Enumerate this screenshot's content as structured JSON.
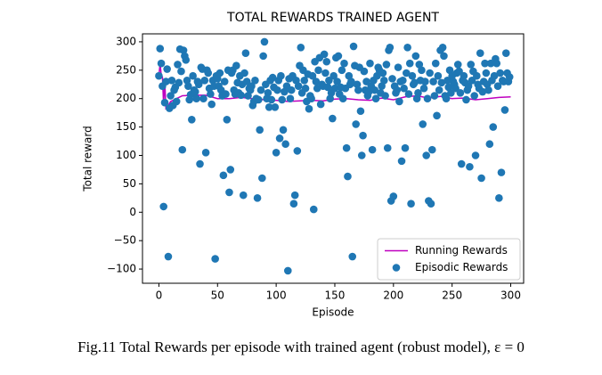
{
  "chart_data": {
    "type": "scatter",
    "title": "TOTAL REWARDS TRAINED AGENT",
    "xlabel": "Episode",
    "ylabel": "Total reward",
    "caption": "Fig.11 Total Rewards per episode with trained agent (robust model), ε = 0",
    "xlim": [
      -14,
      311
    ],
    "ylim": [
      -125,
      314
    ],
    "xticks": [
      0,
      50,
      100,
      150,
      200,
      250,
      300
    ],
    "yticks": [
      {
        "value": -100,
        "label": "−100"
      },
      {
        "value": -50,
        "label": "−50"
      },
      0,
      50,
      100,
      150,
      200,
      250,
      300
    ],
    "legend": "lower right",
    "grid": false,
    "series": [
      {
        "name": "Running Rewards",
        "color": "#bf00bf",
        "kind": "line",
        "x": [
          0,
          1,
          2,
          3,
          4,
          5,
          6,
          8,
          10,
          15,
          20,
          30,
          40,
          50,
          60,
          70,
          80,
          90,
          100,
          110,
          120,
          130,
          140,
          150,
          160,
          170,
          180,
          190,
          200,
          210,
          220,
          230,
          240,
          250,
          260,
          270,
          280,
          290,
          300
        ],
        "values": [
          240,
          262,
          240,
          238,
          190,
          232,
          183,
          188,
          195,
          200,
          205,
          206,
          206,
          200,
          200,
          202,
          200,
          198,
          197,
          195,
          196,
          197,
          196,
          199,
          200,
          198,
          197,
          201,
          198,
          203,
          205,
          201,
          204,
          200,
          201,
          198,
          200,
          202,
          203
        ]
      },
      {
        "name": "Episodic Rewards",
        "color": "#1f77b4",
        "kind": "scatter",
        "x": [
          0,
          1,
          2,
          3,
          4,
          5,
          6,
          7,
          8,
          9,
          10,
          11,
          12,
          13,
          14,
          15,
          16,
          17,
          18,
          19,
          20,
          21,
          22,
          23,
          24,
          25,
          26,
          27,
          28,
          29,
          30,
          31,
          32,
          33,
          34,
          35,
          36,
          37,
          38,
          39,
          40,
          41,
          42,
          43,
          44,
          45,
          46,
          47,
          48,
          49,
          50,
          51,
          52,
          53,
          54,
          55,
          56,
          57,
          58,
          59,
          60,
          61,
          62,
          63,
          64,
          65,
          66,
          67,
          68,
          69,
          70,
          71,
          72,
          73,
          74,
          75,
          76,
          77,
          78,
          79,
          80,
          81,
          82,
          83,
          84,
          85,
          86,
          87,
          88,
          89,
          90,
          91,
          92,
          93,
          94,
          95,
          96,
          97,
          98,
          99,
          100,
          101,
          102,
          103,
          104,
          105,
          106,
          107,
          108,
          109,
          110,
          111,
          112,
          113,
          114,
          115,
          116,
          117,
          118,
          119,
          120,
          121,
          122,
          123,
          124,
          125,
          126,
          127,
          128,
          129,
          130,
          131,
          132,
          133,
          134,
          135,
          136,
          137,
          138,
          139,
          140,
          141,
          142,
          143,
          144,
          145,
          146,
          147,
          148,
          149,
          150,
          151,
          152,
          153,
          154,
          155,
          156,
          157,
          158,
          159,
          160,
          161,
          162,
          163,
          164,
          165,
          166,
          167,
          168,
          169,
          170,
          171,
          172,
          173,
          174,
          175,
          176,
          177,
          178,
          179,
          180,
          181,
          182,
          183,
          184,
          185,
          186,
          187,
          188,
          189,
          190,
          191,
          192,
          193,
          194,
          195,
          196,
          197,
          198,
          199,
          200,
          201,
          202,
          203,
          204,
          205,
          206,
          207,
          208,
          209,
          210,
          211,
          212,
          213,
          214,
          215,
          216,
          217,
          218,
          219,
          220,
          221,
          222,
          223,
          224,
          225,
          226,
          227,
          228,
          229,
          230,
          231,
          232,
          233,
          234,
          235,
          236,
          237,
          238,
          239,
          240,
          241,
          242,
          243,
          244,
          245,
          246,
          247,
          248,
          249,
          250,
          251,
          252,
          253,
          254,
          255,
          256,
          257,
          258,
          259,
          260,
          261,
          262,
          263,
          264,
          265,
          266,
          267,
          268,
          269,
          270,
          271,
          272,
          273,
          274,
          275,
          276,
          277,
          278,
          279,
          280,
          281,
          282,
          283,
          284,
          285,
          286,
          287,
          288,
          289,
          290,
          291,
          292,
          293,
          294,
          295,
          296,
          297,
          298,
          299
        ],
        "values": [
          240,
          288,
          262,
          222,
          10,
          193,
          230,
          252,
          -78,
          183,
          205,
          232,
          188,
          215,
          220,
          195,
          260,
          228,
          287,
          248,
          110,
          285,
          275,
          268,
          232,
          222,
          198,
          207,
          163,
          240,
          215,
          212,
          200,
          230,
          225,
          85,
          255,
          252,
          200,
          232,
          105,
          250,
          245,
          218,
          208,
          190,
          232,
          222,
          -82,
          240,
          235,
          222,
          245,
          215,
          205,
          65,
          230,
          208,
          163,
          250,
          35,
          75,
          245,
          250,
          215,
          208,
          258,
          228,
          210,
          240,
          206,
          225,
          30,
          245,
          280,
          230,
          205,
          218,
          215,
          222,
          188,
          195,
          232,
          200,
          25,
          198,
          145,
          215,
          60,
          275,
          300,
          225,
          200,
          210,
          185,
          232,
          198,
          237,
          220,
          185,
          105,
          215,
          232,
          130,
          240,
          198,
          145,
          212,
          120,
          222,
          -103,
          235,
          200,
          215,
          240,
          15,
          30,
          232,
          108,
          222,
          258,
          290,
          210,
          250,
          232,
          218,
          195,
          243,
          182,
          205,
          200,
          240,
          5,
          265,
          230,
          218,
          250,
          272,
          190,
          225,
          222,
          278,
          245,
          265,
          220,
          232,
          200,
          210,
          165,
          240,
          218,
          272,
          230,
          275,
          208,
          220,
          250,
          200,
          262,
          218,
          113,
          63,
          240,
          225,
          230,
          -78,
          292,
          258,
          155,
          225,
          215,
          255,
          178,
          100,
          135,
          248,
          215,
          230,
          205,
          212,
          262,
          222,
          110,
          232,
          215,
          200,
          240,
          255,
          250,
          210,
          222,
          245,
          232,
          205,
          260,
          113,
          285,
          290,
          20,
          235,
          28,
          222,
          210,
          215,
          255,
          195,
          230,
          90,
          232,
          218,
          113,
          245,
          290,
          208,
          262,
          15,
          240,
          225,
          228,
          275,
          200,
          210,
          260,
          232,
          250,
          155,
          218,
          230,
          100,
          200,
          20,
          245,
          15,
          110,
          230,
          205,
          262,
          170,
          240,
          215,
          285,
          228,
          290,
          275,
          205,
          200,
          232,
          220,
          250,
          210,
          240,
          230,
          225,
          218,
          245,
          260,
          248,
          210,
          85,
          232,
          240,
          228,
          198,
          215,
          222,
          80,
          260,
          232,
          248,
          205,
          100,
          240,
          225,
          218,
          280,
          60,
          212,
          230,
          262,
          245,
          225,
          215,
          120,
          262,
          232,
          150,
          240,
          270,
          262,
          222,
          25,
          245,
          70,
          232,
          230,
          180,
          280,
          245,
          230,
          238
        ]
      }
    ]
  }
}
